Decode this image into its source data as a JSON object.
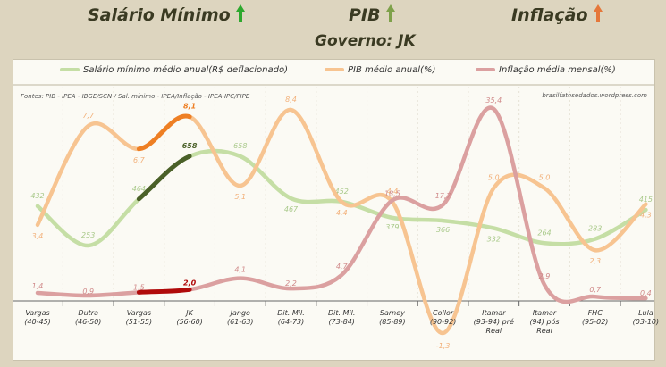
{
  "header": {
    "salario": "Salário Mínimo",
    "pib": "PIB",
    "inflacao": "Inflação",
    "governo": "Governo: JK"
  },
  "colors": {
    "salario": "#c5dea5",
    "pib": "#f7c491",
    "inflacao": "#dba0a0",
    "salario_hl": "#4a6028",
    "pib_hl": "#ee7f24",
    "inflacao_hl": "#b00a0a",
    "arrow_green": "#2ea82e",
    "arrow_orange": "#e5773a"
  },
  "chart_data": {
    "type": "line",
    "categories": [
      "Vargas\n(40-45)",
      "Dutra\n(46-50)",
      "Vargas\n(51-55)",
      "JK\n(56-60)",
      "Jango\n(61-63)",
      "Dit. Mil.\n(64-73)",
      "Dit. Mil.\n(73-84)",
      "Sarney\n(85-89)",
      "Collor\n(90-92)",
      "Itamar\n(93-94) pré\nReal",
      "Itamar\n(94) pós\nReal",
      "FHC\n(95-02)",
      "Lula\n(03-10)"
    ],
    "highlight_segment": [
      2,
      3
    ],
    "legend_position": "top",
    "source_note": "Fontes: PIB - IPEA - IBGE/SCN / Sal. mínimo - IPEA/Inflação - IPEA-IPC/FIPE",
    "site_note": "brasilfatosedados.wordpress.com",
    "series": [
      {
        "name": "Salário mínimo médio anual(R$ deflacionado)",
        "key": "salario",
        "values": [
          432,
          253,
          464,
          658,
          658,
          467,
          452,
          379,
          366,
          332,
          264,
          283,
          415
        ],
        "labels": [
          "432",
          "253",
          "464",
          "658",
          "658",
          "467",
          "452",
          "379",
          "366",
          "332",
          "264",
          "283",
          "415"
        ]
      },
      {
        "name": "PIB médio anual(%)",
        "key": "pib",
        "values": [
          3.4,
          7.7,
          6.7,
          8.1,
          5.1,
          8.4,
          4.4,
          4.4,
          -1.3,
          5.0,
          5.0,
          2.3,
          4.3
        ],
        "labels": [
          "3,4",
          "7,7",
          "6,7",
          "8,1",
          "5,1",
          "8,4",
          "4,4",
          "4,4",
          "-1,3",
          "5,0",
          "5,0",
          "2,3",
          "4,3"
        ]
      },
      {
        "name": "Inflação média mensal(%)",
        "key": "inflacao",
        "values": [
          1.4,
          0.9,
          1.5,
          2.0,
          4.1,
          2.2,
          4.7,
          18.5,
          17.7,
          35.4,
          2.9,
          0.7,
          0.4
        ],
        "labels": [
          "1,4",
          "0,9",
          "1,5",
          "2,0",
          "4,1",
          "2,2",
          "4,7",
          "18,5",
          "17,7",
          "35,4",
          "2,9",
          "0,7",
          "0,4"
        ]
      }
    ]
  }
}
